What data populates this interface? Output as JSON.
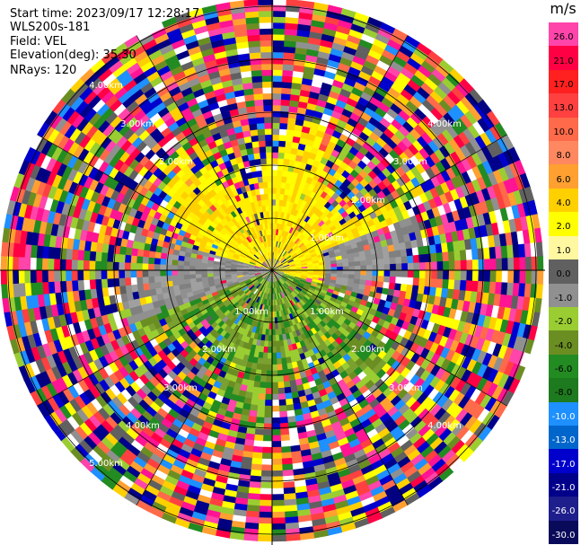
{
  "header": {
    "start_time": "Start time: 2023/09/17 12:28:17",
    "station": "WLS200s-181",
    "field": "Field: VEL",
    "elevation": "Elevation(deg): 35.30",
    "nrays": "NRays: 120"
  },
  "colorbar": {
    "unit": "m/s",
    "labels": [
      "26.0",
      "21.0",
      "17.0",
      "13.0",
      "10.0",
      "8.0",
      "6.0",
      "4.0",
      "2.0",
      "1.0",
      "0.0",
      "-1.0",
      "-2.0",
      "-4.0",
      "-6.0",
      "-8.0",
      "-10.0",
      "-13.0",
      "-17.0",
      "-21.0",
      "-26.0",
      "-30.0"
    ],
    "colors": [
      "#ff44aa",
      "#ff0044",
      "#ff2020",
      "#ff4040",
      "#ff6a4a",
      "#ff8860",
      "#ffa030",
      "#ffd000",
      "#ffff00",
      "#fff8a0",
      "#606060",
      "#909090",
      "#9acd32",
      "#6b8e23",
      "#228b22",
      "#1e7a1e",
      "#1e90ff",
      "#0066cc",
      "#0000cd",
      "#00008b",
      "#1e1e8c",
      "#0a0a5a"
    ]
  },
  "ppi": {
    "ring_label": "1.00km",
    "outer_labels": [
      "4.00km",
      "3.00km",
      "2.00km",
      "1.00km",
      "2.00km",
      "3.00km",
      "3.00km",
      "2.00km",
      "1.00km",
      "1.00km",
      "2.00km",
      "3.00km",
      "4.00km"
    ],
    "noise_colors": [
      "#ff1493",
      "#ff0044",
      "#ff4040",
      "#ff6a4a",
      "#ffa030",
      "#ffd000",
      "#ffff00",
      "#1e90ff",
      "#0000cd",
      "#00008b",
      "#228b22",
      "#6b8e23",
      "#9acd32",
      "#909090",
      "#606060",
      "#ffffff",
      "#000080",
      "#ff44aa"
    ],
    "inner_yellow": [
      "#ffff00",
      "#ffee00",
      "#ffd000"
    ],
    "inner_gray": [
      "#909090",
      "#808080",
      "#a0a0a0"
    ],
    "inner_green": [
      "#6b8e23",
      "#9acd32",
      "#228b22",
      "#7aa030"
    ]
  }
}
